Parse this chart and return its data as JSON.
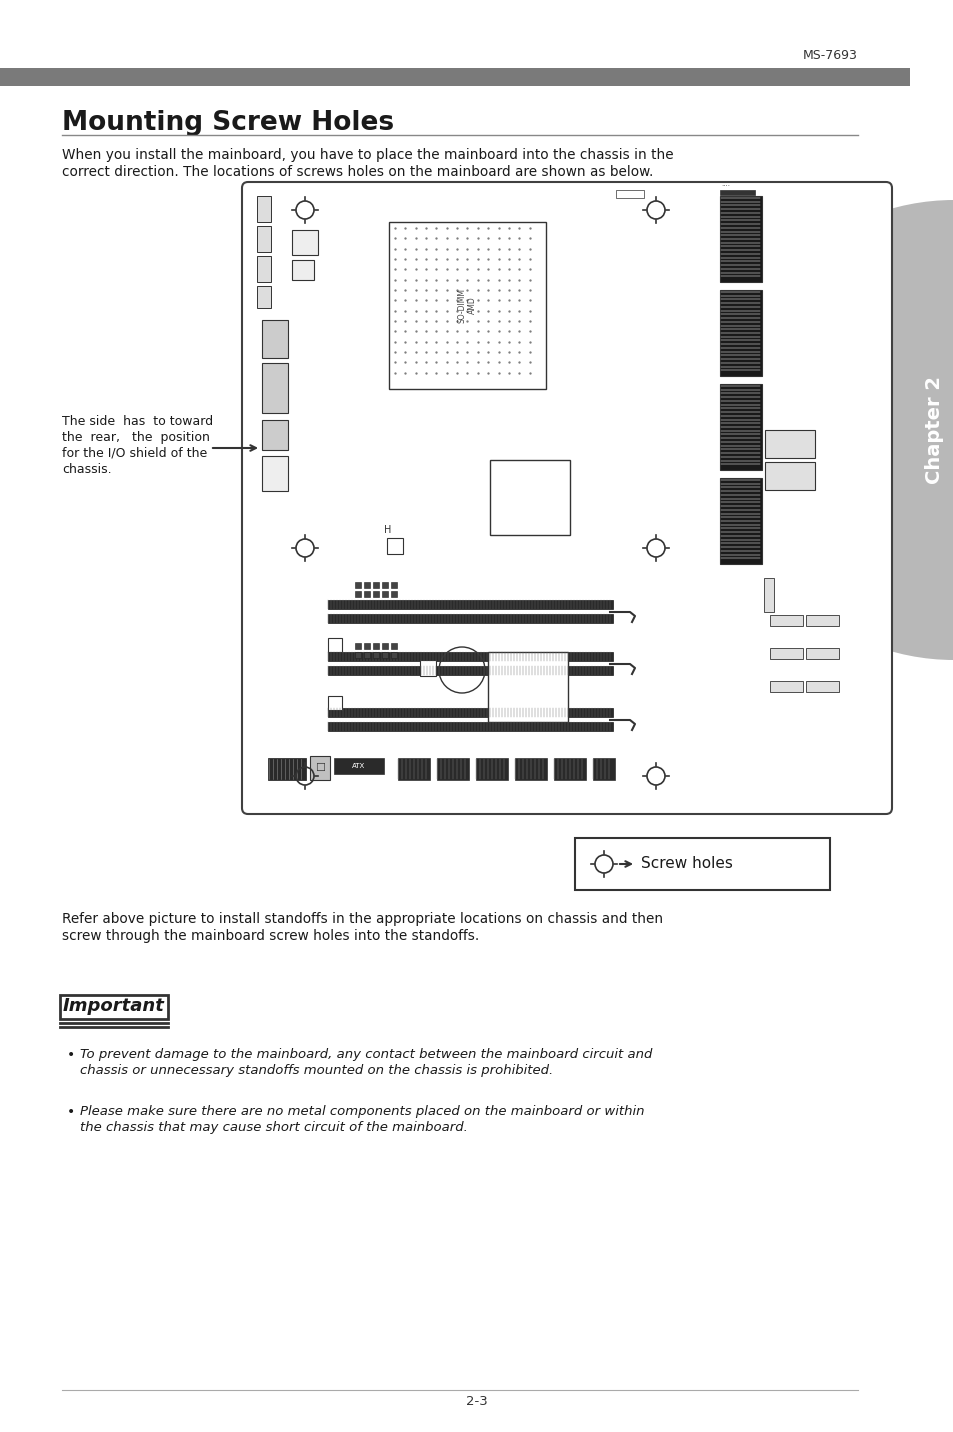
{
  "page_label": "MS-7693",
  "page_number": "2-3",
  "title": "Mounting Screw Holes",
  "intro_text1": "When you install the mainboard, you have to place the mainboard into the chassis in the",
  "intro_text2": "correct direction. The locations of screws holes on the mainboard are shown as below.",
  "side_note_line1": "The side  has  to toward",
  "side_note_line2": "the  rear,   the  position",
  "side_note_line3": "for the I/O shield of the",
  "side_note_line4": "chassis.",
  "legend_text": "Screw holes",
  "refer_text1": "Refer above picture to install standoffs in the appropriate locations on chassis and then",
  "refer_text2": "screw through the mainboard screw holes into the standoffs.",
  "important_title": "Important",
  "bullet1_line1": "To prevent damage to the mainboard, any contact between the mainboard circuit and",
  "bullet1_line2": "chassis or unnecessary standoffs mounted on the chassis is prohibited.",
  "bullet2_line1": "Please make sure there are no metal components placed on the mainboard or within",
  "bullet2_line2": "the chassis that may cause short circuit of the mainboard.",
  "bg_color": "#ffffff",
  "header_bar_color": "#7a7a7a",
  "chapter_bg_color": "#b8b8b8",
  "board_border_color": "#404040",
  "dark": "#333333",
  "mid": "#666666",
  "light": "#aaaaaa",
  "vlight": "#dddddd"
}
